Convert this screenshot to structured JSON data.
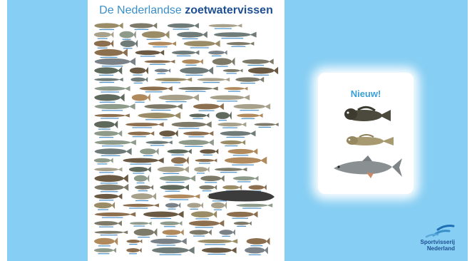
{
  "poster": {
    "title_part1": "De Nederlandse ",
    "title_part2": "zoetwatervissen"
  },
  "new_species": {
    "title": "Nieuw!",
    "fish": [
      {
        "icon": "round-goby-icon",
        "color": "#4c4a3c"
      },
      {
        "icon": "tubenose-goby-icon",
        "color": "#a89a70"
      },
      {
        "icon": "asp-fish-icon",
        "color": "#8a8f92"
      }
    ]
  },
  "logo": {
    "line1": "Sportvisserij",
    "line2": "Nederland"
  },
  "colors": {
    "background": "#86cef3",
    "title_light": "#3a8fc9",
    "title_dark": "#1e4f92",
    "nieuw": "#3aa0d8"
  }
}
